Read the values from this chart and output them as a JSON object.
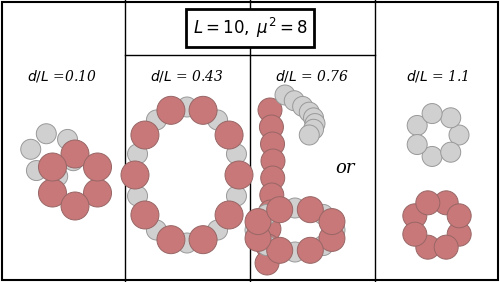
{
  "title_text": "$L = 10,\\; \\mu^2 = 8$",
  "labels": [
    "$d/L$ =0.10",
    "$d/L$ = 0.43",
    "$d/L$ = 0.76",
    "$d/L$ = 1.1"
  ],
  "bead_color_red": "#c87878",
  "bead_color_white": "#d0d0d0",
  "bead_edge_red": "#996666",
  "bead_edge_white": "#999999",
  "or_text": "or",
  "label_fontsize": 10,
  "title_fontsize": 12
}
